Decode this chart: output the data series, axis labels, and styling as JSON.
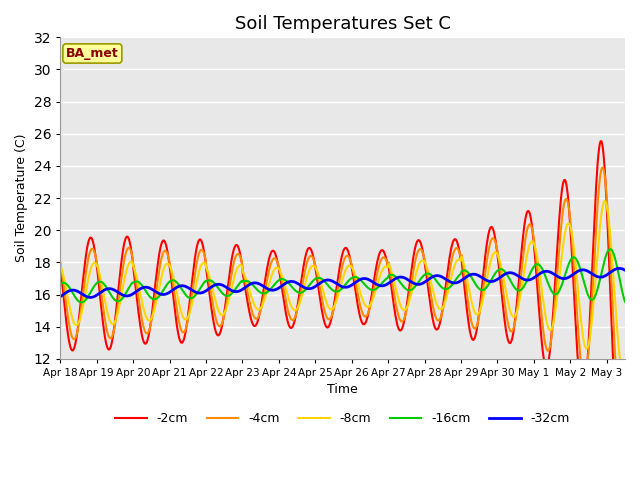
{
  "title": "Soil Temperatures Set C",
  "xlabel": "Time",
  "ylabel": "Soil Temperature (C)",
  "ylim": [
    12,
    32
  ],
  "xlim": [
    0,
    15.5
  ],
  "yticks": [
    12,
    14,
    16,
    18,
    20,
    22,
    24,
    26,
    28,
    30,
    32
  ],
  "xtick_labels": [
    "Apr 18",
    "Apr 19",
    "Apr 20",
    "Apr 21",
    "Apr 22",
    "Apr 23",
    "Apr 24",
    "Apr 25",
    "Apr 26",
    "Apr 27",
    "Apr 28",
    "Apr 29",
    "Apr 30",
    "May 1",
    "May 2",
    "May 3"
  ],
  "xtick_positions": [
    0,
    1,
    2,
    3,
    4,
    5,
    6,
    7,
    8,
    9,
    10,
    11,
    12,
    13,
    14,
    15
  ],
  "annotation_text": "BA_met",
  "annotation_color": "#8B0000",
  "annotation_bg": "#FFFF99",
  "lines": [
    {
      "label": "-2cm",
      "color": "#FF0000",
      "lw": 1.5
    },
    {
      "label": "-4cm",
      "color": "#FF8C00",
      "lw": 1.5
    },
    {
      "label": "-8cm",
      "color": "#FFD700",
      "lw": 1.5
    },
    {
      "label": "-16cm",
      "color": "#00CC00",
      "lw": 1.5
    },
    {
      "label": "-32cm",
      "color": "#0000FF",
      "lw": 2.0
    }
  ],
  "bg_color": "#E8E8E8",
  "grid_color": "#FFFFFF",
  "title_fontsize": 13
}
